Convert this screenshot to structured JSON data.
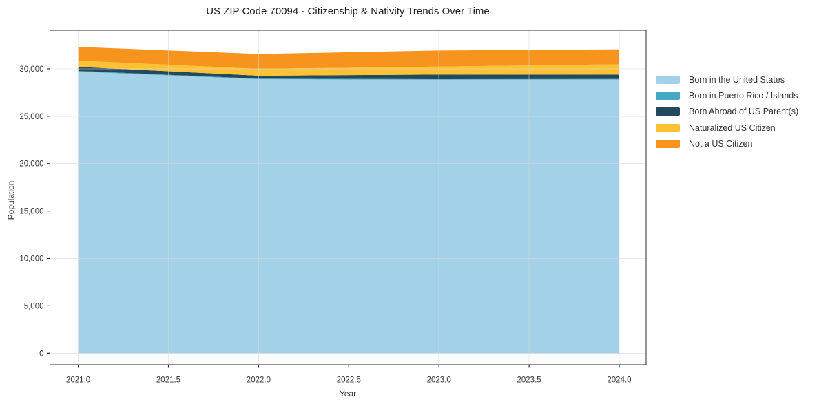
{
  "title": "US ZIP Code 70094 - Citizenship & Nativity Trends Over Time",
  "chart_data": {
    "type": "area",
    "stacked": true,
    "title": "US ZIP Code 70094 - Citizenship & Nativity Trends Over Time",
    "xlabel": "Year",
    "ylabel": "Population",
    "grid": true,
    "legend_position": "right",
    "x": [
      2021,
      2022,
      2023,
      2024
    ],
    "series": [
      {
        "name": "Born in the United States",
        "color": "#a3d2e8",
        "values": [
          29700,
          28900,
          28850,
          28870
        ]
      },
      {
        "name": "Born in Puerto Rico / Islands",
        "color": "#45a9c4",
        "values": [
          80,
          60,
          60,
          60
        ]
      },
      {
        "name": "Born Abroad of US Parent(s)",
        "color": "#24485c",
        "values": [
          430,
          310,
          480,
          460
        ]
      },
      {
        "name": "Naturalized US Citizen",
        "color": "#fcc233",
        "values": [
          650,
          730,
          840,
          1090
        ]
      },
      {
        "name": "Not a US Citizen",
        "color": "#f7941e",
        "values": [
          1450,
          1560,
          1700,
          1570
        ]
      }
    ],
    "stack_totals": [
      32310,
      31560,
      31930,
      32050
    ],
    "xlim": [
      2020.843,
      2024.149
    ],
    "ylim": [
      -1210,
      34060
    ],
    "xticks": [
      2021.0,
      2021.5,
      2022.0,
      2022.5,
      2023.0,
      2023.5,
      2024.0
    ],
    "xtick_labels": [
      "2021.0",
      "2021.5",
      "2022.0",
      "2022.5",
      "2023.0",
      "2023.5",
      "2024.0"
    ],
    "yticks": [
      0,
      5000,
      10000,
      15000,
      20000,
      25000,
      30000
    ],
    "ytick_labels": [
      "0",
      "5,000",
      "10,000",
      "15,000",
      "20,000",
      "25,000",
      "30,000"
    ],
    "colors": {
      "grid": "#d7d7d7",
      "spine": "#2b2b2b",
      "tick_text": "#333333",
      "title_text": "#1a1a1a",
      "background": "#ffffff"
    }
  }
}
